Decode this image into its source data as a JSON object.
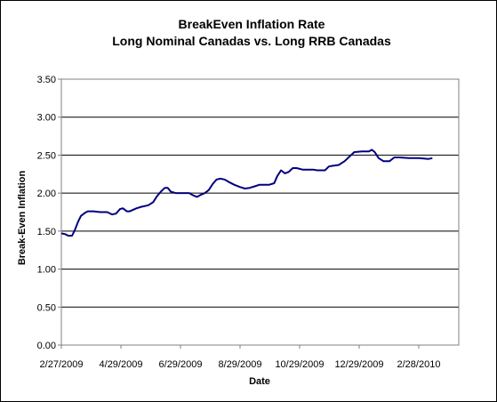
{
  "chart_data": {
    "type": "line",
    "title_lines": [
      "BreakEven Inflation Rate",
      "Long Nominal Canadas vs. Long RRB Canadas"
    ],
    "xlabel": "Date",
    "ylabel": "Break-Even Inflation",
    "ylim": [
      0,
      3.5
    ],
    "yticks": [
      "0.00",
      "0.50",
      "1.00",
      "1.50",
      "2.00",
      "2.50",
      "3.00",
      "3.50"
    ],
    "xlim": [
      "2009-02-27",
      "2010-04-10"
    ],
    "xtick_dates": [
      "2009-02-27",
      "2009-04-29",
      "2009-06-29",
      "2009-08-29",
      "2009-10-29",
      "2009-12-29",
      "2010-02-28"
    ],
    "xticks": [
      "2/27/2009",
      "4/29/2009",
      "6/29/2009",
      "8/29/2009",
      "10/29/2009",
      "12/29/2009",
      "2/28/2010"
    ],
    "grid": "horizontal",
    "line_color": "#000080",
    "series": [
      {
        "points": [
          [
            "2009-02-27",
            1.47
          ],
          [
            "2009-03-03",
            1.46
          ],
          [
            "2009-03-06",
            1.44
          ],
          [
            "2009-03-10",
            1.44
          ],
          [
            "2009-03-13",
            1.52
          ],
          [
            "2009-03-16",
            1.62
          ],
          [
            "2009-03-19",
            1.7
          ],
          [
            "2009-03-23",
            1.74
          ],
          [
            "2009-03-26",
            1.76
          ],
          [
            "2009-04-01",
            1.76
          ],
          [
            "2009-04-08",
            1.75
          ],
          [
            "2009-04-15",
            1.75
          ],
          [
            "2009-04-20",
            1.72
          ],
          [
            "2009-04-24",
            1.73
          ],
          [
            "2009-04-28",
            1.79
          ],
          [
            "2009-05-01",
            1.8
          ],
          [
            "2009-05-05",
            1.76
          ],
          [
            "2009-05-08",
            1.76
          ],
          [
            "2009-05-15",
            1.8
          ],
          [
            "2009-05-20",
            1.82
          ],
          [
            "2009-05-27",
            1.84
          ],
          [
            "2009-06-01",
            1.88
          ],
          [
            "2009-06-05",
            1.96
          ],
          [
            "2009-06-09",
            2.02
          ],
          [
            "2009-06-13",
            2.07
          ],
          [
            "2009-06-16",
            2.07
          ],
          [
            "2009-06-19",
            2.02
          ],
          [
            "2009-06-24",
            2.0
          ],
          [
            "2009-07-01",
            2.0
          ],
          [
            "2009-07-08",
            2.0
          ],
          [
            "2009-07-12",
            1.97
          ],
          [
            "2009-07-16",
            1.95
          ],
          [
            "2009-07-20",
            1.98
          ],
          [
            "2009-07-24",
            2.0
          ],
          [
            "2009-07-28",
            2.04
          ],
          [
            "2009-08-01",
            2.12
          ],
          [
            "2009-08-05",
            2.18
          ],
          [
            "2009-08-09",
            2.19
          ],
          [
            "2009-08-13",
            2.18
          ],
          [
            "2009-08-17",
            2.15
          ],
          [
            "2009-08-23",
            2.11
          ],
          [
            "2009-08-29",
            2.08
          ],
          [
            "2009-09-03",
            2.06
          ],
          [
            "2009-09-08",
            2.07
          ],
          [
            "2009-09-13",
            2.09
          ],
          [
            "2009-09-18",
            2.11
          ],
          [
            "2009-09-28",
            2.11
          ],
          [
            "2009-10-03",
            2.13
          ],
          [
            "2009-10-06",
            2.22
          ],
          [
            "2009-10-10",
            2.3
          ],
          [
            "2009-10-14",
            2.26
          ],
          [
            "2009-10-18",
            2.28
          ],
          [
            "2009-10-22",
            2.33
          ],
          [
            "2009-10-26",
            2.33
          ],
          [
            "2009-11-01",
            2.31
          ],
          [
            "2009-11-12",
            2.31
          ],
          [
            "2009-11-16",
            2.3
          ],
          [
            "2009-11-24",
            2.3
          ],
          [
            "2009-11-28",
            2.35
          ],
          [
            "2009-12-02",
            2.36
          ],
          [
            "2009-12-08",
            2.37
          ],
          [
            "2009-12-14",
            2.42
          ],
          [
            "2009-12-19",
            2.48
          ],
          [
            "2009-12-24",
            2.54
          ],
          [
            "2010-01-01",
            2.55
          ],
          [
            "2010-01-08",
            2.55
          ],
          [
            "2010-01-11",
            2.57
          ],
          [
            "2010-01-14",
            2.54
          ],
          [
            "2010-01-18",
            2.46
          ],
          [
            "2010-01-23",
            2.42
          ],
          [
            "2010-01-29",
            2.42
          ],
          [
            "2010-02-03",
            2.47
          ],
          [
            "2010-02-08",
            2.47
          ],
          [
            "2010-02-18",
            2.46
          ],
          [
            "2010-02-28",
            2.46
          ],
          [
            "2010-03-10",
            2.45
          ],
          [
            "2010-03-14",
            2.46
          ]
        ]
      }
    ]
  }
}
